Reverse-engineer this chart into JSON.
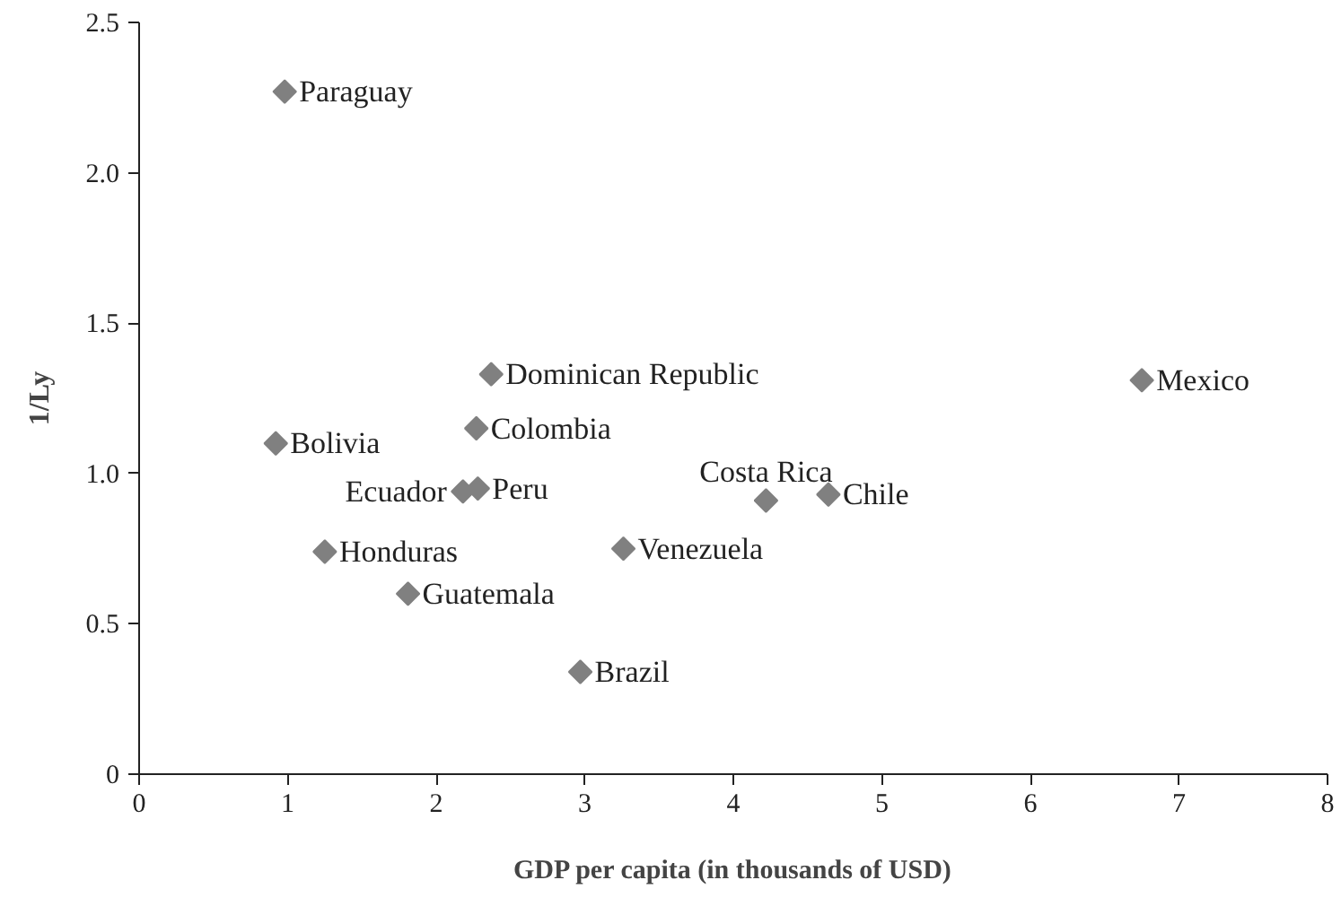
{
  "chart_data": {
    "type": "scatter",
    "xlabel": "GDP per capita (in thousands of USD)",
    "ylabel": "1/Ly",
    "x": [
      0.98,
      0.92,
      2.27,
      2.37,
      2.18,
      2.28,
      1.25,
      1.81,
      2.97,
      3.26,
      6.75,
      4.22,
      4.64
    ],
    "values": [
      2.27,
      1.1,
      1.15,
      1.33,
      0.94,
      0.95,
      0.74,
      0.6,
      0.34,
      0.75,
      1.31,
      0.91,
      0.93
    ],
    "color": "#808080",
    "marker": "diamond",
    "xlim": [
      0,
      8
    ],
    "ylim": [
      0,
      2.5
    ],
    "xticks": [
      0,
      1,
      2,
      3,
      4,
      5,
      6,
      7,
      8
    ],
    "yticks": [
      {
        "value": 0,
        "label": "0"
      },
      {
        "value": 0.5,
        "label": "0.5"
      },
      {
        "value": 1.0,
        "label": "1.0"
      },
      {
        "value": 1.5,
        "label": "1.5"
      },
      {
        "value": 2.0,
        "label": "2.0"
      },
      {
        "value": 2.5,
        "label": "2.5"
      }
    ],
    "grid": false,
    "annotations": [
      {
        "text": "Paraguay",
        "x": 0.98,
        "y": 2.27
      },
      {
        "text": "Bolivia",
        "x": 0.92,
        "y": 1.1
      },
      {
        "text": "Colombia",
        "x": 2.27,
        "y": 1.15
      },
      {
        "text": "Dominican Republic",
        "x": 2.37,
        "y": 1.33
      },
      {
        "text": "Ecuador",
        "x": 2.18,
        "y": 0.94
      },
      {
        "text": "Peru",
        "x": 2.28,
        "y": 0.95
      },
      {
        "text": "Honduras",
        "x": 1.25,
        "y": 0.74
      },
      {
        "text": "Guatemala",
        "x": 1.81,
        "y": 0.6
      },
      {
        "text": "Brazil",
        "x": 2.97,
        "y": 0.34
      },
      {
        "text": "Venezuela",
        "x": 3.26,
        "y": 0.75
      },
      {
        "text": "Mexico",
        "x": 6.75,
        "y": 1.31
      },
      {
        "text": "Costa Rica",
        "x": 4.22,
        "y": 0.91
      },
      {
        "text": "Chile",
        "x": 4.64,
        "y": 0.93
      }
    ]
  }
}
